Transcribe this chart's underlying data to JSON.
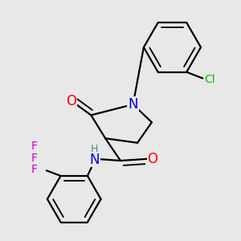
{
  "background_color": "#e8e8e8",
  "bond_color": "#000000",
  "bond_width": 1.6,
  "atom_colors": {
    "O": "#ff0000",
    "N": "#0000dd",
    "Cl": "#00bb00",
    "F": "#cc00cc",
    "H": "#5a8888",
    "C": "#000000"
  },
  "font_size_atoms": 12,
  "font_size_small": 10,
  "font_size_H": 9
}
